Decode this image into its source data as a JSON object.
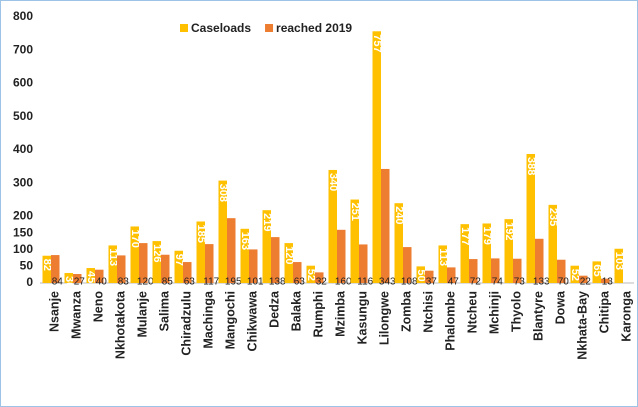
{
  "chart_data": {
    "type": "bar",
    "categories": [
      "Nsanje",
      "Mwanza",
      "Neno",
      "Nkhotakota",
      "Mulanje",
      "Salima",
      "Chiradzulu",
      "Machinga",
      "Mangochi",
      "Chikwawa",
      "Dedza",
      "Balaka",
      "Rumphi",
      "Mzimba",
      "Kasungu",
      "Lilongwe",
      "Zomba",
      "Ntchisi",
      "Phalombe",
      "Ntcheu",
      "Mchinji",
      "Thyolo",
      "Blantyre",
      "Dowa",
      "Nkhata-Bay",
      "Chitipa",
      "Karonga"
    ],
    "series": [
      {
        "name": "Caseloads",
        "color": "#ffc000",
        "values": [
          82,
          30,
          45,
          113,
          170,
          126,
          97,
          185,
          308,
          163,
          219,
          120,
          52,
          340,
          251,
          757,
          240,
          50,
          113,
          177,
          179,
          192,
          388,
          235,
          52,
          65,
          103
        ]
      },
      {
        "name": "reached 2019",
        "color": "#ed7d31",
        "values": [
          84,
          27,
          40,
          83,
          120,
          85,
          63,
          117,
          195,
          101,
          138,
          63,
          32,
          160,
          116,
          343,
          108,
          37,
          47,
          72,
          74,
          73,
          133,
          70,
          22,
          13,
          null
        ]
      }
    ],
    "ylim": [
      0,
      800
    ],
    "yticks": [
      0,
      50,
      100,
      150,
      200,
      300,
      400,
      500,
      600,
      700,
      800
    ],
    "legend": "top",
    "grid": false
  }
}
